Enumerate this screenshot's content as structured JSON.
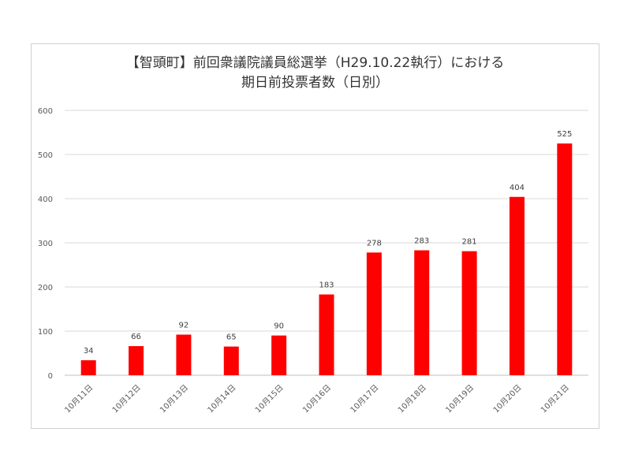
{
  "chart_data": {
    "type": "bar",
    "title_line1": "【智頭町】前回衆議院議員総選挙（H29.10.22執行）における",
    "title_line2": "期日前投票者数（日別）",
    "categories": [
      "10月11日",
      "10月12日",
      "10月13日",
      "10月14日",
      "10月15日",
      "10月16日",
      "10月17日",
      "10月18日",
      "10月19日",
      "10月20日",
      "10月21日"
    ],
    "values": [
      34,
      66,
      92,
      65,
      90,
      183,
      278,
      283,
      281,
      404,
      525
    ],
    "y_ticks": [
      "0",
      "100",
      "200",
      "300",
      "400",
      "500",
      "600"
    ],
    "ylim": [
      0,
      600
    ],
    "bar_color": "#ff0000",
    "grid": true,
    "legend": false
  }
}
